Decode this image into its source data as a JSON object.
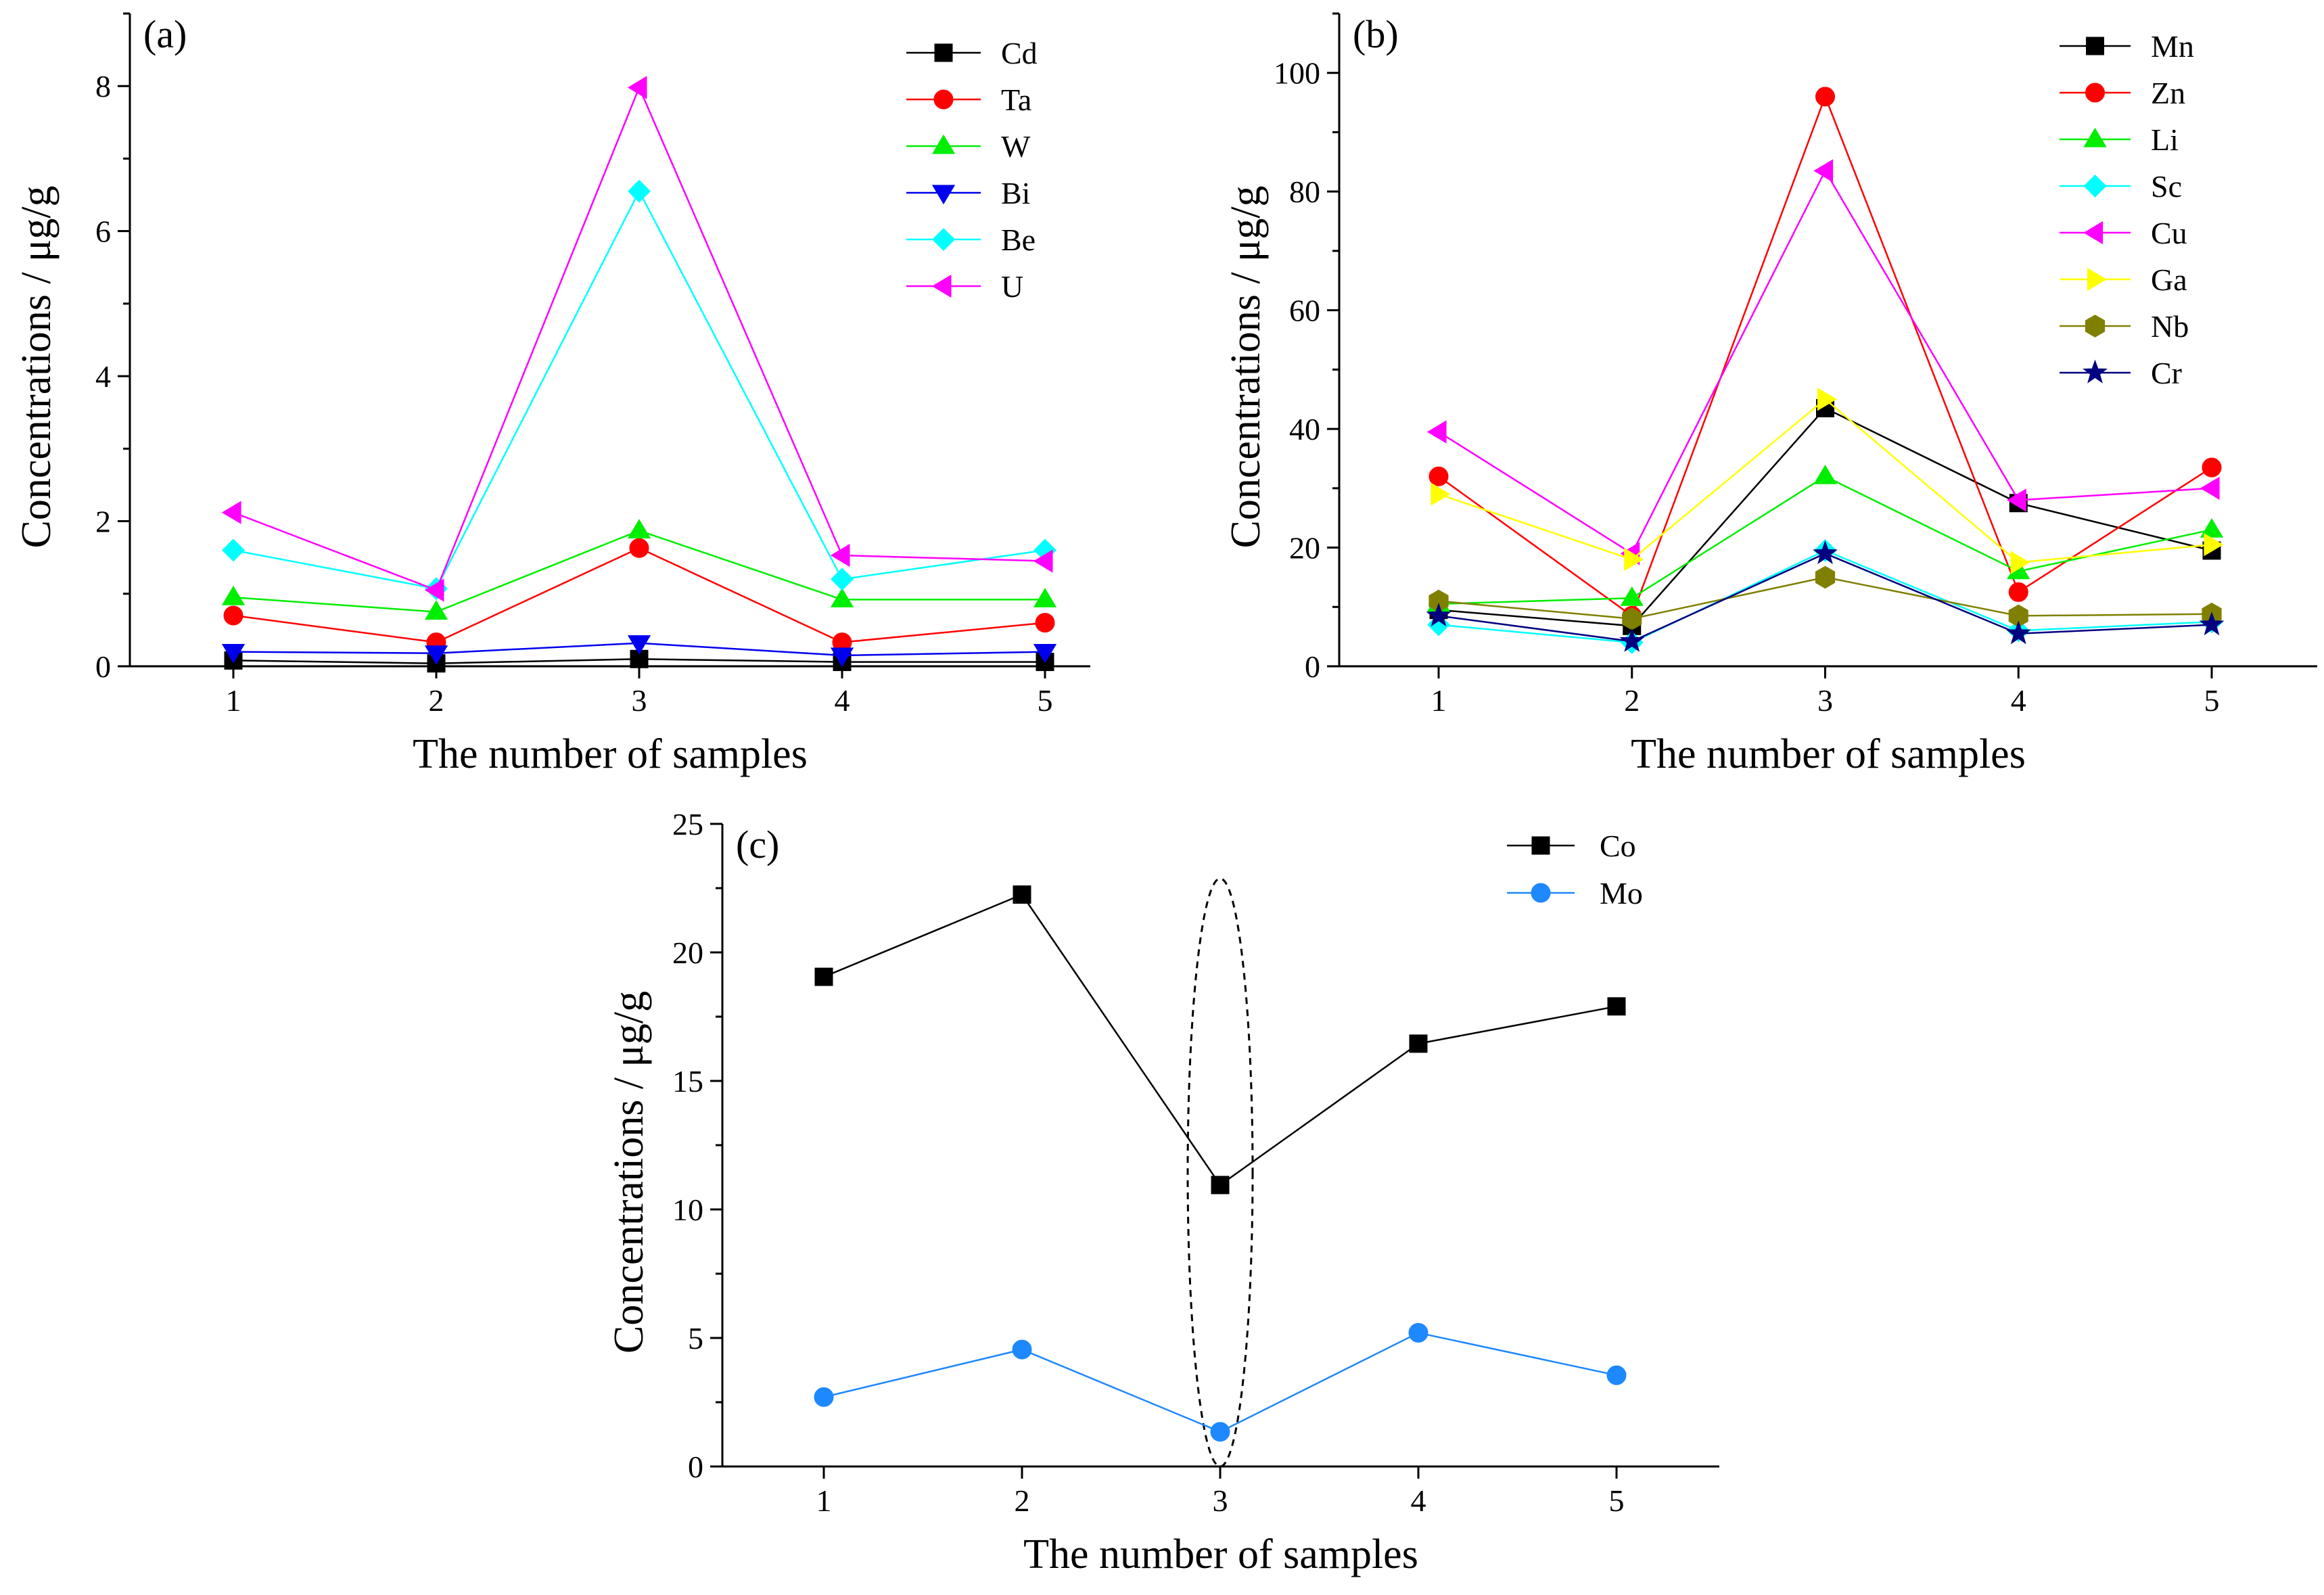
{
  "chart_data": [
    {
      "id": "a",
      "type": "line",
      "panel_label": "(a)",
      "xlabel": "The number of samples",
      "ylabel": "Concentrations / μg/g",
      "categories": [
        "1",
        "2",
        "3",
        "4",
        "5"
      ],
      "ylim": [
        0,
        9
      ],
      "yticks": [
        0,
        2,
        4,
        6,
        8
      ],
      "legend_position": "top-right",
      "series": [
        {
          "name": "Cd",
          "marker": "square",
          "color": "#000000",
          "values": [
            0.08,
            0.04,
            0.1,
            0.06,
            0.06
          ]
        },
        {
          "name": "Ta",
          "marker": "circle",
          "color": "#ff0000",
          "values": [
            0.7,
            0.33,
            1.63,
            0.33,
            0.6
          ]
        },
        {
          "name": "W",
          "marker": "triangle-up",
          "color": "#00ee00",
          "values": [
            0.95,
            0.75,
            1.87,
            0.92,
            0.92
          ]
        },
        {
          "name": "Bi",
          "marker": "triangle-down",
          "color": "#0000ee",
          "values": [
            0.2,
            0.18,
            0.32,
            0.15,
            0.2
          ]
        },
        {
          "name": "Be",
          "marker": "diamond",
          "color": "#00ffff",
          "values": [
            1.6,
            1.07,
            6.55,
            1.2,
            1.6
          ]
        },
        {
          "name": "U",
          "marker": "triangle-left",
          "color": "#ff00ff",
          "values": [
            2.12,
            1.05,
            7.98,
            1.53,
            1.45
          ]
        }
      ]
    },
    {
      "id": "b",
      "type": "line",
      "panel_label": "(b)",
      "xlabel": "The number of samples",
      "ylabel": "Concentrations / μg/g",
      "categories": [
        "1",
        "2",
        "3",
        "4",
        "5"
      ],
      "ylim": [
        0,
        110
      ],
      "yticks": [
        0,
        20,
        40,
        60,
        80,
        100
      ],
      "legend_position": "top-right",
      "series": [
        {
          "name": "Mn",
          "marker": "square",
          "color": "#000000",
          "values": [
            9.5,
            6.8,
            43.5,
            27.5,
            19.5
          ]
        },
        {
          "name": "Zn",
          "marker": "circle",
          "color": "#ff0000",
          "values": [
            32,
            8.5,
            96,
            12.5,
            33.5
          ]
        },
        {
          "name": "Li",
          "marker": "triangle-up",
          "color": "#00ee00",
          "values": [
            10.5,
            11.5,
            32,
            16,
            23
          ]
        },
        {
          "name": "Sc",
          "marker": "diamond",
          "color": "#00ffff",
          "values": [
            7,
            4,
            19.5,
            6,
            7.5
          ]
        },
        {
          "name": "Cu",
          "marker": "triangle-left",
          "color": "#ff00ff",
          "values": [
            39.5,
            19,
            83.5,
            28,
            30
          ]
        },
        {
          "name": "Ga",
          "marker": "triangle-right",
          "color": "#ffff00",
          "values": [
            29,
            18,
            45,
            17.5,
            20.5
          ]
        },
        {
          "name": "Nb",
          "marker": "hexagon",
          "color": "#808000",
          "values": [
            11,
            8,
            15,
            8.5,
            8.8
          ]
        },
        {
          "name": "Cr",
          "marker": "star",
          "color": "#000080",
          "values": [
            8.5,
            4.2,
            19,
            5.5,
            7
          ]
        }
      ]
    },
    {
      "id": "c",
      "type": "line",
      "panel_label": "(c)",
      "xlabel": "The number of samples",
      "ylabel": "Concentrations / μg/g",
      "categories": [
        "1",
        "2",
        "3",
        "4",
        "5"
      ],
      "ylim": [
        0,
        25
      ],
      "yticks": [
        0,
        5,
        10,
        15,
        20,
        25
      ],
      "legend_position": "top-right",
      "annotation": "dashed ellipse around sample 3",
      "series": [
        {
          "name": "Co",
          "marker": "square",
          "color": "#000000",
          "values": [
            19.05,
            22.25,
            10.95,
            16.45,
            17.9
          ]
        },
        {
          "name": "Mo",
          "marker": "circle",
          "color": "#1e88ff",
          "values": [
            2.7,
            4.55,
            1.35,
            5.2,
            3.55
          ]
        }
      ]
    }
  ]
}
